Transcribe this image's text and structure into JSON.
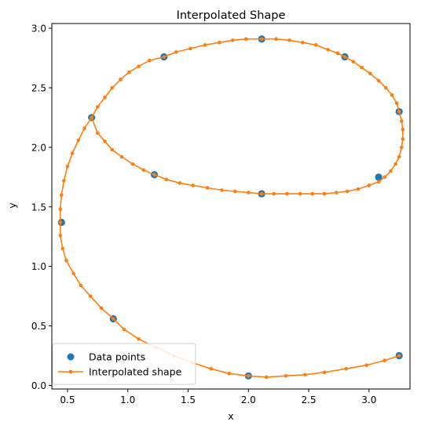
{
  "chart_data": {
    "type": "line",
    "title": "Interpolated Shape",
    "xlabel": "x",
    "ylabel": "y",
    "xlim": [
      0.37,
      3.34
    ],
    "ylim": [
      -0.03,
      3.04
    ],
    "xticks": [
      0.5,
      1.0,
      1.5,
      2.0,
      2.5,
      3.0
    ],
    "xtick_labels": [
      "0.5",
      "1.0",
      "1.5",
      "2.0",
      "2.5",
      "3.0"
    ],
    "yticks": [
      0.0,
      0.5,
      1.0,
      1.5,
      2.0,
      2.5,
      3.0
    ],
    "ytick_labels": [
      "0.0",
      "0.5",
      "1.0",
      "1.5",
      "2.0",
      "2.5",
      "3.0"
    ],
    "grid": false,
    "legend_position": "lower-left",
    "legend": [
      "Data points",
      "Interpolated shape"
    ],
    "series": [
      {
        "name": "Data points",
        "color": "#1f77b4",
        "marker": "circle",
        "x": [
          3.25,
          2.0,
          0.88,
          0.45,
          0.7,
          1.3,
          2.11,
          2.8,
          3.25,
          3.08,
          2.11,
          1.22
        ],
        "y": [
          0.25,
          0.08,
          0.56,
          1.37,
          2.25,
          2.76,
          2.91,
          2.76,
          2.3,
          1.75,
          1.61,
          1.77
        ]
      },
      {
        "name": "Interpolated shape",
        "color": "#ff7f0e",
        "marker": "point",
        "x": [
          3.25,
          3.13,
          2.98,
          2.81,
          2.63,
          2.47,
          2.31,
          2.15,
          2.0,
          1.84,
          1.69,
          1.54,
          1.38,
          1.23,
          1.09,
          0.97,
          0.88,
          0.78,
          0.69,
          0.61,
          0.55,
          0.49,
          0.46,
          0.44,
          0.44,
          0.44,
          0.45,
          0.47,
          0.5,
          0.54,
          0.59,
          0.64,
          0.7,
          0.75,
          0.81,
          0.87,
          0.94,
          1.01,
          1.09,
          1.18,
          1.3,
          1.4,
          1.52,
          1.64,
          1.76,
          1.87,
          1.98,
          2.11,
          2.23,
          2.34,
          2.45,
          2.56,
          2.66,
          2.74,
          2.8,
          2.87,
          2.94,
          3.01,
          3.08,
          3.14,
          3.19,
          3.23,
          3.25,
          3.27,
          3.28,
          3.28,
          3.27,
          3.25,
          3.22,
          3.18,
          3.13,
          3.08,
          3.0,
          2.91,
          2.82,
          2.73,
          2.63,
          2.53,
          2.43,
          2.32,
          2.21,
          2.11,
          2.0,
          1.89,
          1.78,
          1.66,
          1.54,
          1.43,
          1.32,
          1.22,
          1.13,
          1.04,
          0.95,
          0.87,
          0.81,
          0.75,
          0.7
        ],
        "y": [
          0.25,
          0.21,
          0.17,
          0.14,
          0.11,
          0.09,
          0.08,
          0.07,
          0.08,
          0.1,
          0.14,
          0.19,
          0.25,
          0.32,
          0.39,
          0.47,
          0.56,
          0.65,
          0.75,
          0.84,
          0.94,
          1.05,
          1.15,
          1.26,
          1.37,
          1.48,
          1.6,
          1.72,
          1.84,
          1.95,
          2.06,
          2.16,
          2.25,
          2.34,
          2.42,
          2.5,
          2.57,
          2.63,
          2.68,
          2.73,
          2.76,
          2.8,
          2.83,
          2.86,
          2.88,
          2.9,
          2.91,
          2.91,
          2.91,
          2.9,
          2.88,
          2.86,
          2.82,
          2.79,
          2.76,
          2.72,
          2.67,
          2.62,
          2.56,
          2.5,
          2.44,
          2.37,
          2.3,
          2.22,
          2.15,
          2.07,
          2.0,
          1.92,
          1.86,
          1.8,
          1.75,
          1.71,
          1.68,
          1.65,
          1.63,
          1.62,
          1.61,
          1.61,
          1.61,
          1.61,
          1.61,
          1.61,
          1.62,
          1.63,
          1.64,
          1.66,
          1.68,
          1.7,
          1.73,
          1.77,
          1.81,
          1.86,
          1.92,
          1.98,
          2.05,
          2.12,
          2.25
        ]
      }
    ]
  }
}
